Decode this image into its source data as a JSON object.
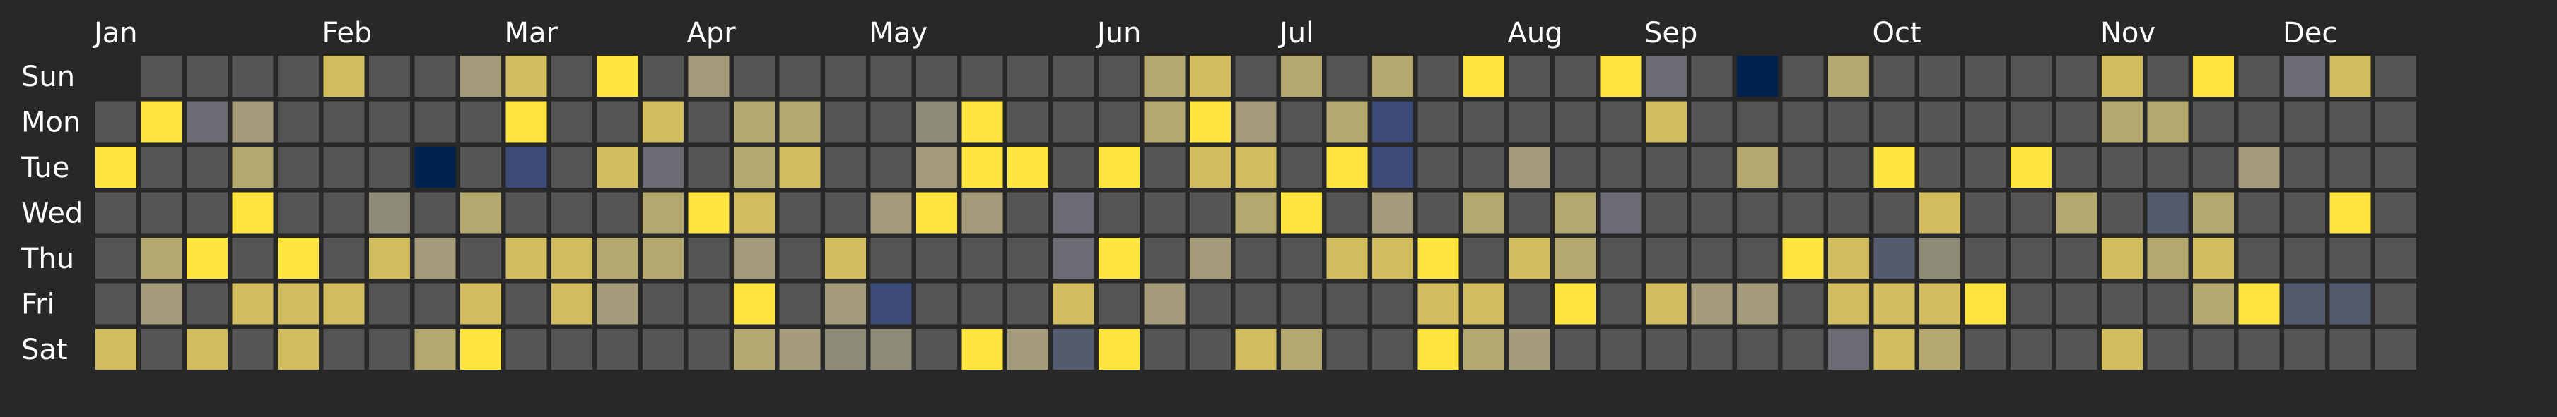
{
  "chart_data": {
    "type": "heatmap",
    "title": "",
    "xlabel": "",
    "ylabel": "",
    "months": [
      "Jan",
      "Feb",
      "Mar",
      "Apr",
      "May",
      "Jun",
      "Jul",
      "Aug",
      "Sep",
      "Oct",
      "Nov",
      "Dec"
    ],
    "month_start_week": [
      0,
      5,
      9,
      13,
      17,
      22,
      26,
      31,
      34,
      39,
      44,
      48
    ],
    "weekdays": [
      "Sun",
      "Mon",
      "Tue",
      "Wed",
      "Thu",
      "Fri",
      "Sat"
    ],
    "first_week_offset": 1,
    "empty_color": "#555555",
    "value_scale": {
      "colormap": "cividis",
      "-3": "#00224e",
      "-2": "#2e3c6e",
      "-1.5": "#3c4a78",
      "-1": "#555b6e",
      "-0.5": "#6b6b73",
      "0": "#7c7b78",
      "0.5": "#8d8b78",
      "1": "#a39b7a",
      "2": "#b3a96e",
      "3": "#d1bd5e",
      "4": "#ffe53e"
    },
    "values_by_week": [
      [
        null,
        null,
        4,
        null,
        null,
        null,
        3
      ],
      [
        null,
        4,
        null,
        null,
        2,
        1,
        null
      ],
      [
        null,
        -0.5,
        null,
        null,
        4,
        null,
        3
      ],
      [
        null,
        1,
        2,
        4,
        null,
        3,
        null
      ],
      [
        null,
        null,
        null,
        null,
        4,
        3,
        3
      ],
      [
        3,
        null,
        null,
        null,
        null,
        3,
        null
      ],
      [
        null,
        null,
        null,
        0.5,
        3,
        null,
        null
      ],
      [
        null,
        null,
        -3,
        null,
        1,
        null,
        2
      ],
      [
        1,
        null,
        null,
        2,
        null,
        3,
        4
      ],
      [
        3,
        4,
        -1.5,
        null,
        3,
        null,
        null
      ],
      [
        null,
        null,
        null,
        null,
        3,
        3,
        null
      ],
      [
        4,
        null,
        3,
        null,
        2,
        1,
        null
      ],
      [
        null,
        3,
        -0.5,
        2,
        2,
        null,
        null
      ],
      [
        1,
        null,
        null,
        4,
        null,
        null,
        null
      ],
      [
        null,
        2,
        2,
        3,
        1,
        4,
        2
      ],
      [
        null,
        2,
        3,
        null,
        null,
        null,
        1
      ],
      [
        null,
        null,
        null,
        null,
        3,
        1,
        0.5
      ],
      [
        null,
        null,
        null,
        1,
        null,
        -1.5,
        0.5
      ],
      [
        null,
        0.5,
        1,
        4,
        null,
        null,
        null
      ],
      [
        null,
        4,
        4,
        1,
        null,
        null,
        4
      ],
      [
        null,
        null,
        4,
        null,
        null,
        null,
        1
      ],
      [
        null,
        null,
        null,
        -0.5,
        -0.5,
        3,
        -1
      ],
      [
        null,
        null,
        4,
        null,
        4,
        null,
        4
      ],
      [
        2,
        2,
        null,
        null,
        null,
        1,
        null
      ],
      [
        3,
        4,
        3,
        null,
        1,
        null,
        null
      ],
      [
        null,
        1,
        3,
        2,
        null,
        null,
        3
      ],
      [
        2,
        null,
        null,
        4,
        null,
        null,
        2
      ],
      [
        null,
        2,
        4,
        null,
        3,
        null,
        null
      ],
      [
        2,
        -1.5,
        -1.5,
        1,
        3,
        null,
        null
      ],
      [
        null,
        null,
        null,
        null,
        4,
        3,
        4
      ],
      [
        4,
        null,
        null,
        2,
        null,
        3,
        2
      ],
      [
        null,
        null,
        1,
        null,
        3,
        null,
        1
      ],
      [
        null,
        null,
        null,
        2,
        2,
        4,
        null
      ],
      [
        4,
        null,
        null,
        -0.5,
        null,
        null,
        null
      ],
      [
        -0.5,
        3,
        null,
        null,
        null,
        3,
        null
      ],
      [
        null,
        null,
        null,
        null,
        null,
        1,
        null
      ],
      [
        -3,
        null,
        2,
        null,
        null,
        1,
        null
      ],
      [
        null,
        null,
        null,
        null,
        4,
        null,
        null
      ],
      [
        2,
        null,
        null,
        null,
        3,
        3,
        -0.5
      ],
      [
        null,
        null,
        4,
        null,
        -1,
        3,
        3
      ],
      [
        null,
        null,
        null,
        3,
        0.5,
        3,
        2
      ],
      [
        null,
        null,
        null,
        null,
        null,
        4,
        null
      ],
      [
        null,
        null,
        4,
        null,
        null,
        null,
        null
      ],
      [
        null,
        null,
        null,
        2,
        null,
        null,
        null
      ],
      [
        3,
        2,
        null,
        null,
        3,
        null,
        3
      ],
      [
        null,
        2,
        null,
        -1,
        2,
        null,
        null
      ],
      [
        4,
        null,
        null,
        2,
        3,
        2,
        null
      ],
      [
        null,
        null,
        1,
        null,
        null,
        4,
        null
      ],
      [
        -0.5,
        null,
        null,
        null,
        null,
        -1,
        null
      ],
      [
        3,
        null,
        null,
        4,
        null,
        -1,
        null
      ],
      [
        null,
        null,
        null,
        null,
        null,
        null,
        null
      ]
    ]
  }
}
